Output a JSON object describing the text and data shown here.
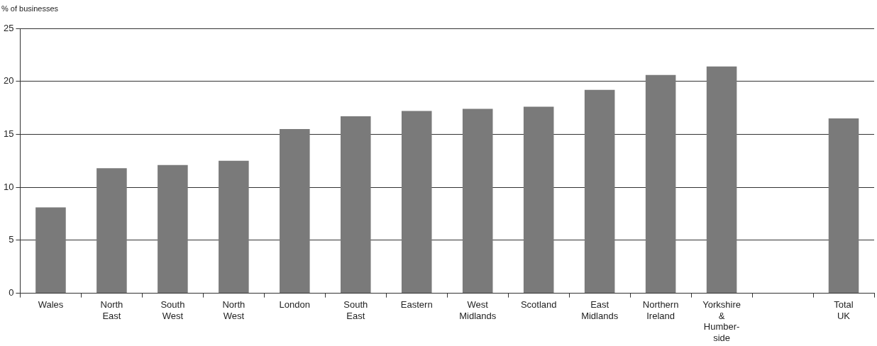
{
  "chart_data": {
    "type": "bar",
    "ylabel": "% of businesses",
    "categories": [
      "Wales",
      "North\nEast",
      "South\nWest",
      "North\nWest",
      "London",
      "South\nEast",
      "Eastern",
      "West\nMidlands",
      "Scotland",
      "East\nMidlands",
      "Northern\nIreland",
      "Yorkshire\n&\nHumber-\nside",
      null,
      "Total\nUK"
    ],
    "values": [
      8.1,
      11.8,
      12.1,
      12.5,
      15.5,
      16.7,
      17.2,
      17.4,
      17.6,
      19.2,
      20.6,
      21.4,
      null,
      16.5
    ],
    "color": "#7a7a7a",
    "ylim": [
      0,
      25
    ],
    "yticks": [
      0,
      5,
      10,
      15,
      20,
      25
    ],
    "grid": "y"
  }
}
